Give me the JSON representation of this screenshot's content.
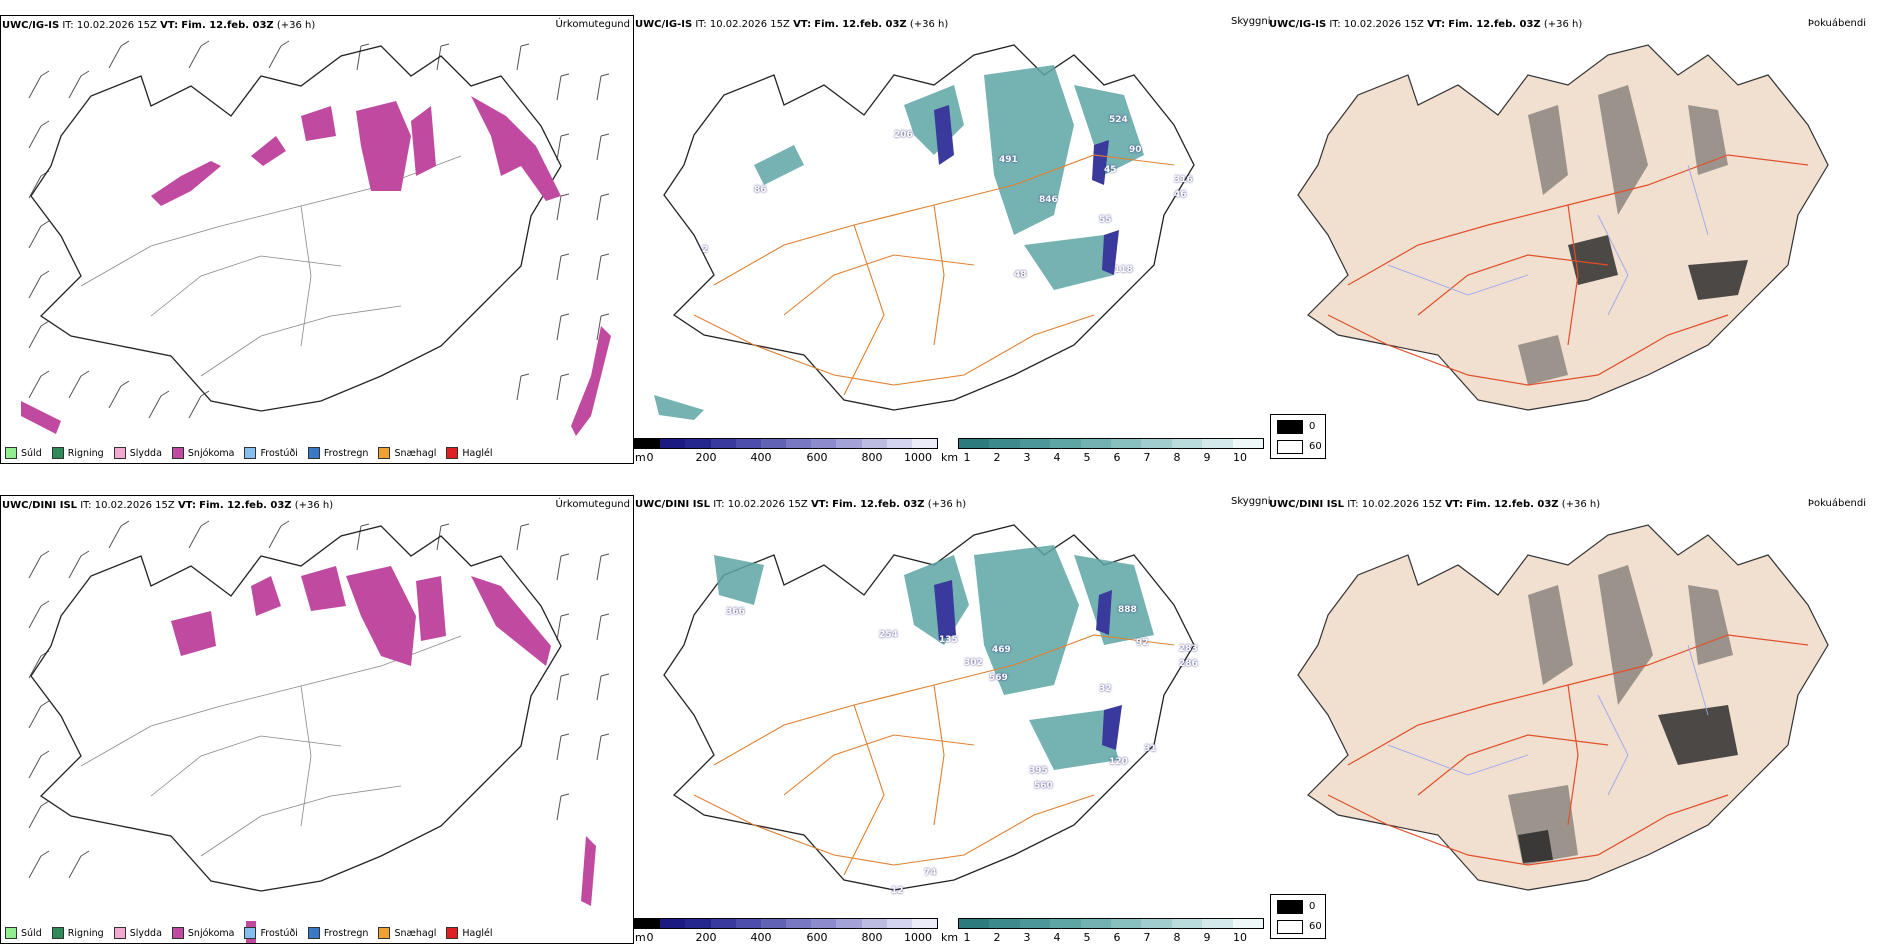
{
  "rows": [
    {
      "model": "UWC/IG-IS",
      "it_label": "IT:",
      "it_value": "10.02.2026 15Z",
      "vt_label": "VT:",
      "vt_value": "Fim. 12.feb. 03Z",
      "lead": "(+36 h)"
    },
    {
      "model": "UWC/DINI ISL",
      "it_label": "IT:",
      "it_value": "10.02.2026 15Z",
      "vt_label": "VT:",
      "vt_value": "Fim. 12.feb. 03Z",
      "lead": "(+36 h)"
    }
  ],
  "panel_titles": {
    "precip": "Úrkomutegund",
    "visibility": "Skyggni",
    "fog": "Þokuábendi"
  },
  "precip_legend": [
    {
      "label": "Súld",
      "color": "#90ee90"
    },
    {
      "label": "Rigning",
      "color": "#2e8b57"
    },
    {
      "label": "Slydda",
      "color": "#f4a7d0"
    },
    {
      "label": "Snjókoma",
      "color": "#c04aa0"
    },
    {
      "label": "Frostúði",
      "color": "#87bef0"
    },
    {
      "label": "Frostregn",
      "color": "#3a78c8"
    },
    {
      "label": "Snæhagl",
      "color": "#f0a030"
    },
    {
      "label": "Haglél",
      "color": "#e02020"
    }
  ],
  "colorbar_m": {
    "unit": "m",
    "ticks": [
      "0",
      "200",
      "400",
      "600",
      "800",
      "1000"
    ],
    "colors": [
      "#000000",
      "#1a1a80",
      "#26268f",
      "#3a3a9c",
      "#4d4dab",
      "#6262b5",
      "#7777c2",
      "#8c8ccc",
      "#a3a3d8",
      "#bcbce3",
      "#d4d4ee",
      "#ececf8"
    ]
  },
  "colorbar_km": {
    "unit": "km",
    "ticks": [
      "1",
      "2",
      "3",
      "4",
      "5",
      "6",
      "7",
      "8",
      "9",
      "10"
    ],
    "colors": [
      "#2e7b7b",
      "#3c8a8a",
      "#4c9898",
      "#5ea5a5",
      "#72b2b2",
      "#88c0c0",
      "#a0cece",
      "#badcdc",
      "#d4eaea",
      "#eef8f8"
    ]
  },
  "fog_legend": {
    "high": "0",
    "low": "60"
  },
  "visibility_labels": [
    [
      "206",
      "491",
      "524",
      "90",
      "316",
      "846",
      "45",
      "46",
      "55",
      "86",
      "48",
      "118",
      "2"
    ],
    [
      "366",
      "254",
      "135",
      "302",
      "469",
      "569",
      "888",
      "92",
      "283",
      "286",
      "32",
      "395",
      "120",
      "560",
      "31",
      "74",
      "12"
    ]
  ]
}
